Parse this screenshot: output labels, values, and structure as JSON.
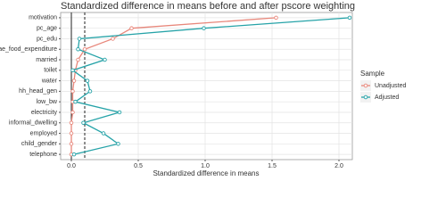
{
  "chart_data": {
    "type": "line",
    "title": "Standardized difference in means before and after pscore weighting",
    "x_label": "Standardized difference in means",
    "categories": [
      "motivation",
      "pc_age",
      "pc_edu",
      "ae_food_expenditure",
      "married",
      "toilet",
      "water",
      "hh_head_gen",
      "low_bw",
      "electricity",
      "informal_dwelling",
      "employed",
      "child_gender",
      "telephone"
    ],
    "series": [
      {
        "name": "Unadjusted",
        "color": "#e8877b",
        "values": [
          1.53,
          0.45,
          0.31,
          0.1,
          0.05,
          0.03,
          0.02,
          0.01,
          0.01,
          0.01,
          0.0,
          0.0,
          0.0,
          0.0
        ]
      },
      {
        "name": "Adjusted",
        "color": "#26a3a8",
        "values": [
          2.08,
          0.99,
          0.06,
          0.05,
          0.25,
          0.01,
          0.12,
          0.14,
          0.03,
          0.36,
          0.09,
          0.24,
          0.35,
          0.02
        ]
      }
    ],
    "xlim": [
      -0.08,
      2.1
    ],
    "xticks": [
      {
        "value": 0,
        "label": "0.0"
      },
      0.5,
      {
        "value": 1,
        "label": "1.0"
      },
      1.5,
      {
        "value": 2,
        "label": "2.0"
      }
    ],
    "vlines": [
      {
        "value": 0,
        "style": "solid"
      },
      {
        "value": 0.1,
        "style": "dashed"
      }
    ],
    "legend_title": "Sample",
    "legend": "right",
    "grid": true
  }
}
